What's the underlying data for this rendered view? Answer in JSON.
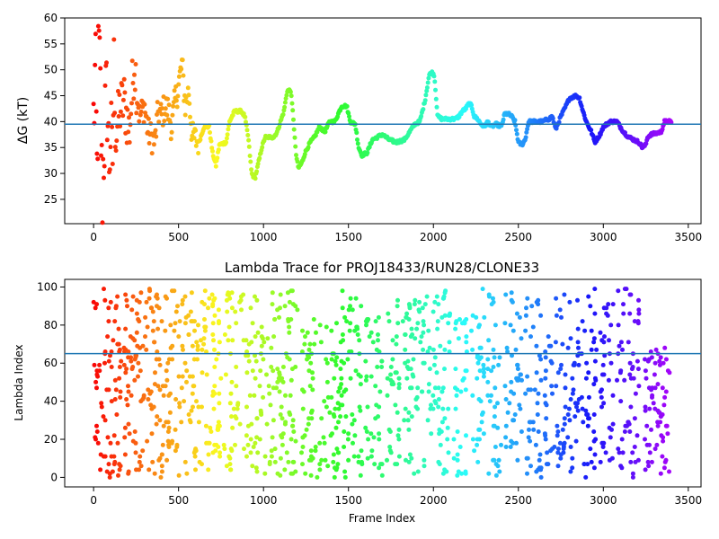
{
  "chart_data": [
    {
      "type": "scatter",
      "title": "",
      "xlabel": "",
      "ylabel": "ΔG (kT)",
      "xlim": [
        -170,
        3575
      ],
      "ylim": [
        20.3,
        60
      ],
      "xticks": [
        0,
        500,
        1000,
        1500,
        2000,
        2500,
        3000,
        3500
      ],
      "yticks": [
        25,
        30,
        35,
        40,
        45,
        50,
        55,
        60
      ],
      "colormap": "rainbow (red → violet along frame index)",
      "reference_line": {
        "y": 39.5,
        "color": "#1f77b4"
      },
      "series": [
        {
          "points_by_frame": "dense trace sampled every 5 frames from 0 to 3400",
          "trace_anchors": [
            [
              0,
              40
            ],
            [
              10,
              50
            ],
            [
              20,
              30
            ],
            [
              30,
              55
            ],
            [
              40,
              45
            ],
            [
              50,
              25
            ],
            [
              60,
              35
            ],
            [
              70,
              42
            ],
            [
              80,
              45
            ],
            [
              90,
              32
            ],
            [
              100,
              38
            ],
            [
              110,
              29
            ],
            [
              120,
              52
            ],
            [
              130,
              36
            ],
            [
              150,
              42
            ],
            [
              180,
              44
            ],
            [
              210,
              38
            ],
            [
              240,
              52
            ],
            [
              270,
              41
            ],
            [
              300,
              43
            ],
            [
              320,
              38
            ],
            [
              340,
              37
            ],
            [
              360,
              36
            ],
            [
              380,
              42
            ],
            [
              400,
              41
            ],
            [
              420,
              43
            ],
            [
              440,
              42
            ],
            [
              460,
              39
            ],
            [
              480,
              44
            ],
            [
              500,
              47
            ],
            [
              520,
              51
            ],
            [
              540,
              43
            ],
            [
              560,
              46
            ],
            [
              580,
              37
            ],
            [
              620,
              36
            ],
            [
              650,
              39
            ],
            [
              680,
              39
            ],
            [
              700,
              34
            ],
            [
              720,
              31.5
            ],
            [
              740,
              35.5
            ],
            [
              780,
              36
            ],
            [
              800,
              40
            ],
            [
              830,
              42
            ],
            [
              870,
              42
            ],
            [
              890,
              41
            ],
            [
              910,
              37
            ],
            [
              930,
              30
            ],
            [
              950,
              29
            ],
            [
              970,
              32
            ],
            [
              990,
              35
            ],
            [
              1010,
              37
            ],
            [
              1060,
              37
            ],
            [
              1080,
              38
            ],
            [
              1100,
              40
            ],
            [
              1120,
              42
            ],
            [
              1140,
              46
            ],
            [
              1160,
              46
            ],
            [
              1175,
              41
            ],
            [
              1190,
              34
            ],
            [
              1205,
              31
            ],
            [
              1225,
              32
            ],
            [
              1245,
              34
            ],
            [
              1275,
              36
            ],
            [
              1300,
              37
            ],
            [
              1330,
              39
            ],
            [
              1360,
              38
            ],
            [
              1390,
              40
            ],
            [
              1420,
              40
            ],
            [
              1460,
              43
            ],
            [
              1490,
              43
            ],
            [
              1510,
              40
            ],
            [
              1540,
              39.5
            ],
            [
              1560,
              35
            ],
            [
              1580,
              33.5
            ],
            [
              1610,
              34
            ],
            [
              1640,
              36.5
            ],
            [
              1670,
              37
            ],
            [
              1700,
              37.5
            ],
            [
              1740,
              36.5
            ],
            [
              1780,
              36
            ],
            [
              1830,
              36.5
            ],
            [
              1860,
              38
            ],
            [
              1890,
              39.5
            ],
            [
              1920,
              40
            ],
            [
              1950,
              44
            ],
            [
              1965,
              47
            ],
            [
              1975,
              49
            ],
            [
              1990,
              49.5
            ],
            [
              2005,
              49
            ],
            [
              2015,
              45
            ],
            [
              2025,
              41
            ],
            [
              2050,
              40.5
            ],
            [
              2100,
              40.5
            ],
            [
              2130,
              40.5
            ],
            [
              2150,
              41
            ],
            [
              2170,
              42
            ],
            [
              2190,
              42.5
            ],
            [
              2210,
              43.5
            ],
            [
              2225,
              43
            ],
            [
              2240,
              41
            ],
            [
              2260,
              40.5
            ],
            [
              2280,
              39.5
            ],
            [
              2300,
              39
            ],
            [
              2320,
              40
            ],
            [
              2340,
              39
            ],
            [
              2370,
              39.5
            ],
            [
              2400,
              39
            ],
            [
              2420,
              41.5
            ],
            [
              2440,
              41.5
            ],
            [
              2460,
              41
            ],
            [
              2480,
              40
            ],
            [
              2500,
              36
            ],
            [
              2520,
              35.5
            ],
            [
              2540,
              36.5
            ],
            [
              2560,
              40
            ],
            [
              2600,
              40
            ],
            [
              2640,
              40
            ],
            [
              2680,
              40.5
            ],
            [
              2700,
              41
            ],
            [
              2720,
              38.5
            ],
            [
              2750,
              41
            ],
            [
              2780,
              43
            ],
            [
              2800,
              44.5
            ],
            [
              2840,
              45
            ],
            [
              2860,
              44.5
            ],
            [
              2880,
              42
            ],
            [
              2900,
              40
            ],
            [
              2930,
              38
            ],
            [
              2950,
              36
            ],
            [
              2980,
              37.5
            ],
            [
              3000,
              39
            ],
            [
              3040,
              40
            ],
            [
              3080,
              40
            ],
            [
              3100,
              39
            ],
            [
              3120,
              38
            ],
            [
              3150,
              37
            ],
            [
              3180,
              36.5
            ],
            [
              3210,
              36
            ],
            [
              3230,
              35
            ],
            [
              3250,
              35.5
            ],
            [
              3260,
              37
            ],
            [
              3280,
              37.5
            ],
            [
              3340,
              38
            ],
            [
              3360,
              40
            ],
            [
              3390,
              40
            ]
          ]
        }
      ]
    },
    {
      "type": "scatter",
      "title": "Lambda Trace for PROJ18433/RUN28/CLONE33",
      "xlabel": "Frame Index",
      "ylabel": "Lambda Index",
      "xlim": [
        -170,
        3575
      ],
      "ylim": [
        -5,
        104
      ],
      "xticks": [
        0,
        500,
        1000,
        1500,
        2000,
        2500,
        3000,
        3500
      ],
      "yticks": [
        0,
        20,
        40,
        60,
        80,
        100
      ],
      "colormap": "rainbow (red → violet along frame index)",
      "reference_line": {
        "y": 65,
        "color": "#1f77b4"
      },
      "series": [
        {
          "points_by_frame": "lambda values 0–99 sampled every 5 frames from 0 to 3400, clustered in vertical bands",
          "band_ranges": [
            [
              0,
              240,
              0,
              99
            ],
            [
              240,
              700,
              0,
              99
            ],
            [
              700,
              1000,
              0,
              99
            ],
            [
              1000,
              1200,
              0,
              99
            ],
            [
              1220,
              1320,
              0,
              85
            ],
            [
              1330,
              1460,
              0,
              82
            ],
            [
              1460,
              1580,
              0,
              99
            ],
            [
              1600,
              1700,
              0,
              86
            ],
            [
              1720,
              1800,
              0,
              99
            ],
            [
              1820,
              1960,
              0,
              93
            ],
            [
              1960,
              2100,
              0,
              99
            ],
            [
              2120,
              2200,
              0,
              85
            ],
            [
              2220,
              2300,
              0,
              99
            ],
            [
              2320,
              2400,
              0,
              98
            ],
            [
              2420,
              2520,
              0,
              99
            ],
            [
              2540,
              2640,
              0,
              99
            ],
            [
              2650,
              2700,
              0,
              76
            ],
            [
              2710,
              2780,
              0,
              99
            ],
            [
              2790,
              2860,
              0,
              98
            ],
            [
              2870,
              2960,
              0,
              99
            ],
            [
              2980,
              3060,
              0,
              95
            ],
            [
              3080,
              3210,
              0,
              99
            ],
            [
              3240,
              3390,
              0,
              68
            ]
          ]
        }
      ]
    }
  ]
}
